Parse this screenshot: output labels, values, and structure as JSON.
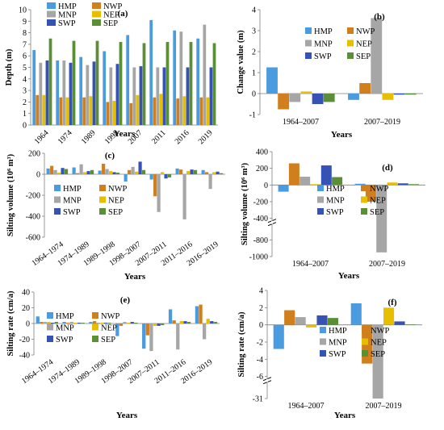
{
  "colors": {
    "HMP": "#4a9be0",
    "NWP": "#d07f1c",
    "MNP": "#a6a6a6",
    "NEP": "#e6c000",
    "SWP": "#3552b4",
    "SEP": "#5a8f35"
  },
  "chart_data": [
    {
      "panel": "(a)",
      "type": "bar",
      "categories": [
        "1964",
        "1974",
        "1989",
        "1998",
        "2007",
        "2011",
        "2016",
        "2019"
      ],
      "series": [
        {
          "name": "HMP",
          "values": [
            6.5,
            5.6,
            5.9,
            6.4,
            7.8,
            9.1,
            8.2,
            7.5
          ]
        },
        {
          "name": "NWP",
          "values": [
            2.6,
            2.4,
            2.4,
            2.0,
            1.9,
            2.4,
            2.3,
            2.4
          ]
        },
        {
          "name": "MNP",
          "values": [
            5.4,
            5.6,
            5.2,
            5.0,
            5.0,
            5.0,
            8.1,
            8.7
          ]
        },
        {
          "name": "NEP",
          "values": [
            2.6,
            2.4,
            2.5,
            2.1,
            2.6,
            2.7,
            2.5,
            2.4
          ]
        },
        {
          "name": "SWP",
          "values": [
            5.6,
            5.4,
            5.5,
            5.3,
            5.1,
            5.0,
            5.0,
            5.0
          ]
        },
        {
          "name": "SEP",
          "values": [
            7.5,
            7.3,
            7.3,
            7.2,
            7.1,
            7.2,
            7.2,
            7.1
          ]
        }
      ],
      "xlabel": "Years",
      "ylabel": "Depth (m)",
      "ylim": [
        0,
        10
      ],
      "yticks": [
        "0",
        "1",
        "2",
        "3",
        "4",
        "5",
        "6",
        "7",
        "8",
        "9",
        "10"
      ],
      "legend": "top-left, two columns"
    },
    {
      "panel": "(b)",
      "type": "bar",
      "categories": [
        "1964–2007",
        "2007–2019"
      ],
      "series": [
        {
          "name": "HMP",
          "values": [
            1.25,
            -0.3
          ]
        },
        {
          "name": "NWP",
          "values": [
            -0.75,
            0.5
          ]
        },
        {
          "name": "MNP",
          "values": [
            -0.4,
            3.6
          ]
        },
        {
          "name": "NEP",
          "values": [
            0.1,
            -0.3
          ]
        },
        {
          "name": "SWP",
          "values": [
            -0.5,
            -0.05
          ]
        },
        {
          "name": "SEP",
          "values": [
            -0.4,
            -0.05
          ]
        }
      ],
      "xlabel": "Years",
      "ylabel": "Change value (m)",
      "ylim": [
        -1,
        4
      ],
      "yticks": [
        "-1",
        "0",
        "1",
        "2",
        "3",
        "4"
      ],
      "legend": "center, two columns"
    },
    {
      "panel": "(c)",
      "type": "bar",
      "categories": [
        "1964–1974",
        "1974–1989",
        "1989–1998",
        "1998–2007",
        "2007–2011",
        "2011–2016",
        "2016–2019"
      ],
      "series": [
        {
          "name": "HMP",
          "values": [
            55,
            65,
            35,
            -70,
            -50,
            55,
            40
          ]
        },
        {
          "name": "NWP",
          "values": [
            80,
            10,
            100,
            40,
            -210,
            45,
            20
          ]
        },
        {
          "name": "MNP",
          "values": [
            40,
            95,
            50,
            70,
            -360,
            -430,
            -140
          ]
        },
        {
          "name": "NEP",
          "values": [
            15,
            20,
            30,
            25,
            20,
            30,
            20
          ]
        },
        {
          "name": "SWP",
          "values": [
            60,
            30,
            20,
            120,
            -40,
            45,
            25
          ]
        },
        {
          "name": "SEP",
          "values": [
            50,
            40,
            15,
            40,
            -30,
            40,
            10
          ]
        }
      ],
      "xlabel": "Years",
      "ylabel": "Silting volume (10⁶ m³)",
      "ylim": [
        -600,
        200
      ],
      "yticks": [
        "-600",
        "-400",
        "-200",
        "0",
        "200"
      ],
      "legend": "bottom-left, two columns"
    },
    {
      "panel": "(d)",
      "type": "bar",
      "categories": [
        "1964–2007",
        "2007–2019"
      ],
      "series": [
        {
          "name": "HMP",
          "values": [
            -80,
            15
          ]
        },
        {
          "name": "NWP",
          "values": [
            260,
            -200
          ]
        },
        {
          "name": "MNP",
          "values": [
            100,
            -950
          ]
        },
        {
          "name": "NEP",
          "values": [
            10,
            30
          ]
        },
        {
          "name": "SWP",
          "values": [
            235,
            20
          ]
        },
        {
          "name": "SEP",
          "values": [
            95,
            10
          ]
        }
      ],
      "xlabel": "Years",
      "ylabel": "Silting  volume (10⁶ m³)",
      "ylim": [
        -1000,
        400
      ],
      "axis_break": [
        -400,
        -600
      ],
      "yticks": [
        "-1000",
        "-800",
        "-400",
        "-200",
        "0",
        "200",
        "400"
      ],
      "legend": "center, two columns"
    },
    {
      "panel": "(e)",
      "type": "bar",
      "categories": [
        "1964–1974",
        "1974–1989",
        "1989–1998",
        "1998–2007",
        "2007–2011",
        "2011–2016",
        "2016–2019"
      ],
      "series": [
        {
          "name": "HMP",
          "values": [
            9,
            2,
            2,
            -16,
            -32,
            18,
            22
          ]
        },
        {
          "name": "NWP",
          "values": [
            2,
            1,
            3,
            -3,
            -15,
            4,
            24
          ]
        },
        {
          "name": "MNP",
          "values": [
            2,
            2,
            1,
            2,
            -35,
            -33,
            -20
          ]
        },
        {
          "name": "NEP",
          "values": [
            2,
            1,
            1,
            1,
            -3,
            3,
            6
          ]
        },
        {
          "name": "SWP",
          "values": [
            1,
            1,
            1,
            2,
            -3,
            3,
            3
          ]
        },
        {
          "name": "SEP",
          "values": [
            2,
            1,
            1,
            1,
            -2,
            2,
            2
          ]
        }
      ],
      "xlabel": "Years",
      "ylabel": "Silting rate (cm/a)",
      "ylim": [
        -40,
        40
      ],
      "yticks": [
        "-40",
        "-20",
        "0",
        "20",
        "40"
      ],
      "legend": "bottom-left, two columns"
    },
    {
      "panel": "(f)",
      "type": "bar",
      "categories": [
        "1964–2007",
        "2007–2019"
      ],
      "series": [
        {
          "name": "HMP",
          "values": [
            -2.8,
            2.5
          ]
        },
        {
          "name": "NWP",
          "values": [
            1.7,
            -4.5
          ]
        },
        {
          "name": "MNP",
          "values": [
            0.9,
            -31
          ]
        },
        {
          "name": "NEP",
          "values": [
            -0.3,
            2.0
          ]
        },
        {
          "name": "SWP",
          "values": [
            1.1,
            0.4
          ]
        },
        {
          "name": "SEP",
          "values": [
            0.8,
            0.05
          ]
        }
      ],
      "xlabel": "Years",
      "ylabel": "Silting  rate (cm/a)",
      "ylim": [
        -31,
        4
      ],
      "axis_break": [
        -6,
        -29
      ],
      "yticks": [
        "-31",
        "-6",
        "-4",
        "-2",
        "0",
        "2",
        "4"
      ],
      "legend": "center, two columns"
    }
  ]
}
